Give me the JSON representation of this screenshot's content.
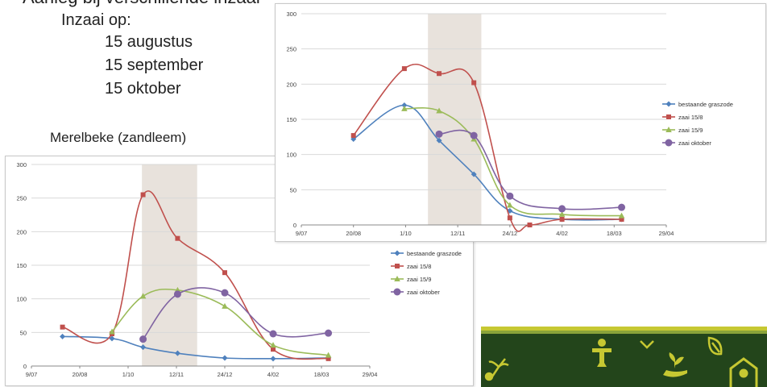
{
  "slide": {
    "heading": "Aanleg bij verschillende inzaai",
    "inzaai_label": "Inzaai op:",
    "dates": [
      "15 augustus",
      "15 september",
      "15 oktober"
    ],
    "location": "Merelbeke (zandleem)"
  },
  "colors": {
    "bestaande": "#4f81bd",
    "zaai15_8": "#c0504d",
    "zaai15_9": "#9bbb59",
    "zaaiokt": "#8064a2",
    "shade": "#e8e2dc",
    "grid": "#d9d9d9",
    "banner": "#23451b"
  },
  "banner_icons": [
    "sprout-icon",
    "scarecrow-icon",
    "plant-hand-icon",
    "leaf-icon",
    "house-icon",
    "seedling-icon"
  ],
  "chart_data": [
    {
      "type": "line",
      "x_ticks": [
        "9/07",
        "20/08",
        "1/10",
        "12/11",
        "24/12",
        "4/02",
        "18/03",
        "29/04"
      ],
      "xlim": [
        "2014-07-09",
        "2015-04-29"
      ],
      "ylim": [
        0,
        300
      ],
      "y_ticks": [
        "0",
        "50",
        "100",
        "150",
        "200",
        "250",
        "300"
      ],
      "grid": true,
      "legend": "right",
      "shaded_period": [
        "2014-10-19",
        "2014-12-01"
      ],
      "series": [
        {
          "name": "bestaande graszode",
          "color_key": "bestaande",
          "marker": "diamond",
          "points": [
            [
              "2014-08-20",
              122
            ],
            [
              "2014-09-30",
              170
            ],
            [
              "2014-10-28",
              120
            ],
            [
              "2014-11-25",
              72
            ],
            [
              "2014-12-24",
              20
            ],
            [
              "2015-02-04",
              8
            ],
            [
              "2015-03-24",
              8
            ]
          ]
        },
        {
          "name": "zaai 15/8",
          "color_key": "zaai15_8",
          "marker": "square",
          "points": [
            [
              "2014-08-20",
              127
            ],
            [
              "2014-09-30",
              222
            ],
            [
              "2014-10-28",
              215
            ],
            [
              "2014-11-25",
              202
            ],
            [
              "2014-12-24",
              10
            ],
            [
              "2015-01-09",
              0
            ],
            [
              "2015-02-04",
              8
            ],
            [
              "2015-03-24",
              8
            ]
          ]
        },
        {
          "name": "zaai 15/9",
          "color_key": "zaai15_9",
          "marker": "triangle",
          "points": [
            [
              "2014-09-30",
              165
            ],
            [
              "2014-10-28",
              162
            ],
            [
              "2014-11-25",
              122
            ],
            [
              "2014-12-24",
              28
            ],
            [
              "2015-02-04",
              15
            ],
            [
              "2015-03-24",
              13
            ]
          ]
        },
        {
          "name": "zaai oktober",
          "color_key": "zaaiokt",
          "marker": "circle",
          "points": [
            [
              "2014-10-28",
              129
            ],
            [
              "2014-11-25",
              127
            ],
            [
              "2014-12-24",
              41
            ],
            [
              "2015-02-04",
              23
            ],
            [
              "2015-03-24",
              25
            ]
          ]
        }
      ]
    },
    {
      "type": "line",
      "x_ticks": [
        "9/07",
        "20/08",
        "1/10",
        "12/11",
        "24/12",
        "4/02",
        "18/03",
        "29/04"
      ],
      "xlim": [
        "2014-07-09",
        "2015-04-29"
      ],
      "ylim": [
        0,
        300
      ],
      "y_ticks": [
        "0",
        "50",
        "100",
        "150",
        "200",
        "250",
        "300"
      ],
      "grid": true,
      "legend": "right",
      "shaded_period": [
        "2014-10-13",
        "2014-11-30"
      ],
      "series": [
        {
          "name": "bestaande graszode",
          "color_key": "bestaande",
          "marker": "diamond",
          "points": [
            [
              "2014-08-05",
              44
            ],
            [
              "2014-09-17",
              41
            ],
            [
              "2014-10-14",
              28
            ],
            [
              "2014-11-13",
              19
            ],
            [
              "2014-12-24",
              12
            ],
            [
              "2015-02-04",
              11
            ],
            [
              "2015-03-24",
              12
            ]
          ]
        },
        {
          "name": "zaai 15/8",
          "color_key": "zaai15_8",
          "marker": "square",
          "points": [
            [
              "2014-08-05",
              58
            ],
            [
              "2014-09-17",
              48
            ],
            [
              "2014-10-14",
              255
            ],
            [
              "2014-11-13",
              190
            ],
            [
              "2014-12-24",
              139
            ],
            [
              "2015-02-04",
              25
            ],
            [
              "2015-03-24",
              11
            ]
          ]
        },
        {
          "name": "zaai 15/9",
          "color_key": "zaai15_9",
          "marker": "triangle",
          "points": [
            [
              "2014-09-17",
              51
            ],
            [
              "2014-10-14",
              104
            ],
            [
              "2014-11-13",
              113
            ],
            [
              "2014-12-24",
              89
            ],
            [
              "2015-02-04",
              31
            ],
            [
              "2015-03-24",
              16
            ]
          ]
        },
        {
          "name": "zaai oktober",
          "color_key": "zaaiokt",
          "marker": "circle",
          "points": [
            [
              "2014-10-14",
              40
            ],
            [
              "2014-11-13",
              107
            ],
            [
              "2014-12-24",
              109
            ],
            [
              "2015-02-04",
              48
            ],
            [
              "2015-03-24",
              49
            ]
          ]
        }
      ]
    }
  ]
}
